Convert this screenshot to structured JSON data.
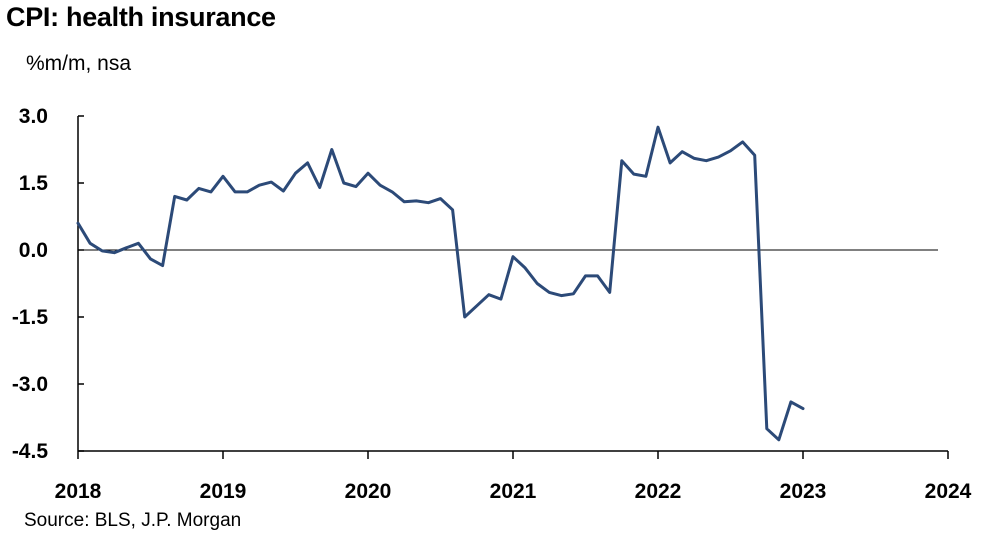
{
  "title": "CPI: health insurance",
  "subtitle": "%m/m, nsa",
  "source": "Source: BLS, J.P. Morgan",
  "colors": {
    "line": "#2c4a78",
    "axis": "#000000",
    "zero_line": "#000000"
  },
  "chart_data": {
    "type": "line",
    "title": "CPI: health insurance",
    "subtitle": "%m/m, nsa",
    "xlabel": "",
    "ylabel": "",
    "xlim": [
      2018,
      2024
    ],
    "ylim": [
      -4.5,
      3.0
    ],
    "y_ticks": [
      3.0,
      1.5,
      0.0,
      -1.5,
      -3.0,
      -4.5
    ],
    "y_tick_labels": [
      "3.0",
      "1.5",
      "0.0",
      "-1.5",
      "-3.0",
      "-4.5"
    ],
    "x_ticks": [
      2018,
      2019,
      2020,
      2021,
      2022,
      2023,
      2024
    ],
    "x_tick_labels": [
      "2018",
      "2019",
      "2020",
      "2021",
      "2022",
      "2023",
      "2024"
    ],
    "grid": false,
    "series": [
      {
        "x": [
          "2018-01",
          "2018-02",
          "2018-03",
          "2018-04",
          "2018-05",
          "2018-06",
          "2018-07",
          "2018-08",
          "2018-09",
          "2018-10",
          "2018-11",
          "2018-12",
          "2019-01",
          "2019-02",
          "2019-03",
          "2019-04",
          "2019-05",
          "2019-06",
          "2019-07",
          "2019-08",
          "2019-09",
          "2019-10",
          "2019-11",
          "2019-12",
          "2020-01",
          "2020-02",
          "2020-03",
          "2020-04",
          "2020-05",
          "2020-06",
          "2020-07",
          "2020-08",
          "2020-09",
          "2020-10",
          "2020-11",
          "2020-12",
          "2021-01",
          "2021-02",
          "2021-03",
          "2021-04",
          "2021-05",
          "2021-06",
          "2021-07",
          "2021-08",
          "2021-09",
          "2021-10",
          "2021-11",
          "2021-12",
          "2022-01",
          "2022-02",
          "2022-03",
          "2022-04",
          "2022-05",
          "2022-06",
          "2022-07",
          "2022-08",
          "2022-09",
          "2022-10",
          "2022-11",
          "2022-12",
          "2023-01"
        ],
        "values": [
          0.6,
          0.15,
          -0.02,
          -0.06,
          0.05,
          0.15,
          -0.2,
          -0.35,
          1.2,
          1.12,
          1.38,
          1.3,
          1.65,
          1.3,
          1.3,
          1.45,
          1.52,
          1.32,
          1.72,
          1.95,
          1.4,
          2.25,
          1.5,
          1.42,
          1.72,
          1.45,
          1.3,
          1.08,
          1.1,
          1.06,
          1.15,
          0.9,
          -1.5,
          -1.25,
          -1.0,
          -1.1,
          -0.15,
          -0.4,
          -0.75,
          -0.95,
          -1.02,
          -0.98,
          -0.58,
          -0.58,
          -0.95,
          2.0,
          1.7,
          1.65,
          2.75,
          1.95,
          2.2,
          2.05,
          2.0,
          2.08,
          2.22,
          2.42,
          2.12,
          -4.0,
          -4.25,
          -3.4,
          -3.55
        ]
      }
    ]
  }
}
